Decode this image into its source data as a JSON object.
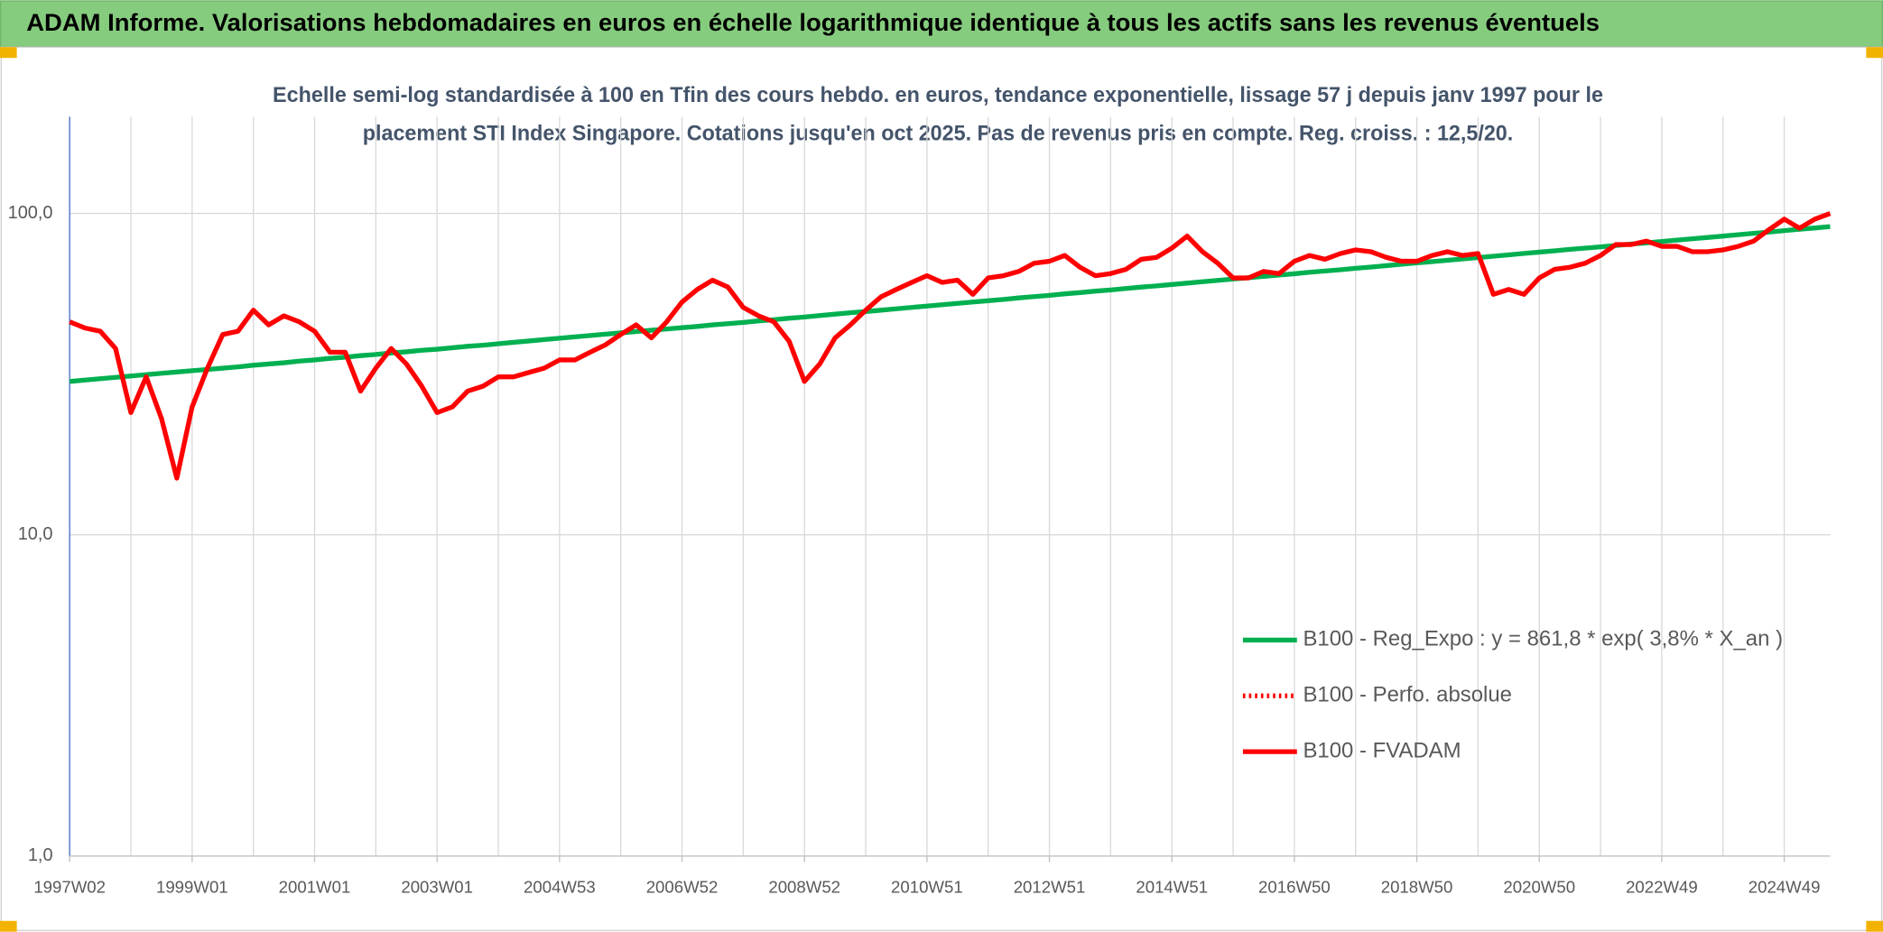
{
  "chart_data": {
    "type": "line",
    "title": "ADAM Informe. Valorisations hebdomadaires en euros en échelle logarithmique identique à tous les actifs sans les revenus éventuels",
    "subtitle": [
      "Echelle semi-log standardisée à 100 en Tfin des cours hebdo. en euros, tendance exponentielle, lissage 57 j depuis janv 1997 pour le",
      "placement STI Index Singapore. Cotations jusqu'en oct 2025. Pas de revenus pris en compte. Reg. croiss. : 12,5/20."
    ],
    "categories": [
      "1997W02",
      null,
      null,
      null,
      null,
      null,
      null,
      null,
      "1999W01",
      null,
      null,
      null,
      null,
      null,
      null,
      null,
      "2001W01",
      null,
      null,
      null,
      null,
      null,
      null,
      null,
      "2003W01",
      null,
      null,
      null,
      null,
      null,
      null,
      null,
      "2004W53",
      null,
      null,
      null,
      null,
      null,
      null,
      null,
      "2006W52",
      null,
      null,
      null,
      null,
      null,
      null,
      null,
      "2008W52",
      null,
      null,
      null,
      null,
      null,
      null,
      null,
      "2010W51",
      null,
      null,
      null,
      null,
      null,
      null,
      null,
      "2012W51",
      null,
      null,
      null,
      null,
      null,
      null,
      null,
      "2014W51",
      null,
      null,
      null,
      null,
      null,
      null,
      null,
      "2016W50",
      null,
      null,
      null,
      null,
      null,
      null,
      null,
      "2018W50",
      null,
      null,
      null,
      null,
      null,
      null,
      null,
      "2020W50",
      null,
      null,
      null,
      null,
      null,
      null,
      null,
      "2022W49",
      null,
      null,
      null,
      null,
      null,
      null,
      null,
      "2024W49",
      null,
      null,
      null
    ],
    "series": [
      {
        "name": "B100 - Reg_Expo : y = 861,8 * exp( 3,8% *  X_an )",
        "color": "#00b050",
        "dash": "solid",
        "values": [
          30.0,
          30.3,
          30.6,
          30.9,
          31.2,
          31.5,
          31.8,
          32.1,
          32.4,
          32.7,
          33.0,
          33.3,
          33.7,
          34.0,
          34.3,
          34.7,
          35.0,
          35.4,
          35.7,
          36.1,
          36.4,
          36.8,
          37.1,
          37.5,
          37.8,
          38.2,
          38.6,
          38.9,
          39.3,
          39.7,
          40.1,
          40.5,
          40.9,
          41.3,
          41.7,
          42.1,
          42.5,
          42.9,
          43.3,
          43.7,
          44.1,
          44.5,
          45.0,
          45.4,
          45.8,
          46.3,
          46.7,
          47.2,
          47.6,
          48.1,
          48.6,
          49.1,
          49.5,
          50.0,
          50.5,
          51.0,
          51.5,
          52.0,
          52.5,
          53.0,
          53.5,
          54.0,
          54.6,
          55.1,
          55.6,
          56.2,
          56.7,
          57.3,
          57.8,
          58.4,
          59.0,
          59.5,
          60.1,
          60.7,
          61.3,
          61.9,
          62.5,
          63.1,
          63.7,
          64.3,
          64.9,
          65.6,
          66.2,
          66.8,
          67.5,
          68.1,
          68.8,
          69.5,
          70.2,
          70.8,
          71.5,
          72.2,
          72.9,
          73.6,
          74.3,
          75.1,
          75.8,
          76.5,
          77.3,
          78.0,
          78.7,
          79.5,
          80.3,
          81.0,
          81.8,
          82.6,
          83.4,
          84.2,
          85.0,
          85.9,
          86.7,
          87.5,
          88.4,
          89.3,
          90.1,
          91.0
        ]
      },
      {
        "name": "B100 - Perfo. absolue",
        "color": "#ff0000",
        "dash": "dotted"
      },
      {
        "name": "B100 - FVADAM",
        "color": "#ff0000",
        "dash": "solid",
        "values": [
          46,
          44,
          43,
          38,
          24,
          31,
          23,
          15,
          25,
          33,
          42,
          43,
          50,
          45,
          48,
          46,
          43,
          37,
          37,
          28,
          33,
          38,
          34,
          29,
          24,
          25,
          28,
          29,
          31,
          31,
          32,
          33,
          35,
          35,
          37,
          39,
          42,
          45,
          41,
          46,
          53,
          58,
          62,
          59,
          51,
          48,
          46,
          40,
          30,
          34,
          41,
          45,
          50,
          55,
          58,
          61,
          64,
          61,
          62,
          56,
          63,
          64,
          66,
          70,
          71,
          74,
          68,
          64,
          65,
          67,
          72,
          73,
          78,
          85,
          76,
          70,
          63,
          63,
          66,
          65,
          71,
          74,
          72,
          75,
          77,
          76,
          73,
          71,
          71,
          74,
          76,
          74,
          75,
          56,
          58,
          56,
          63,
          67,
          68,
          70,
          74,
          80,
          80,
          82,
          79,
          79,
          76,
          76,
          77,
          79,
          82,
          89,
          96,
          90,
          96,
          100
        ]
      }
    ],
    "ylim": [
      1,
      200
    ],
    "yticks": [
      {
        "value": 1,
        "label": "1,0"
      },
      {
        "value": 10,
        "label": "10,0"
      },
      {
        "value": 100,
        "label": "100,0"
      }
    ],
    "log_y": true,
    "grid": true,
    "legend": "lower right"
  }
}
